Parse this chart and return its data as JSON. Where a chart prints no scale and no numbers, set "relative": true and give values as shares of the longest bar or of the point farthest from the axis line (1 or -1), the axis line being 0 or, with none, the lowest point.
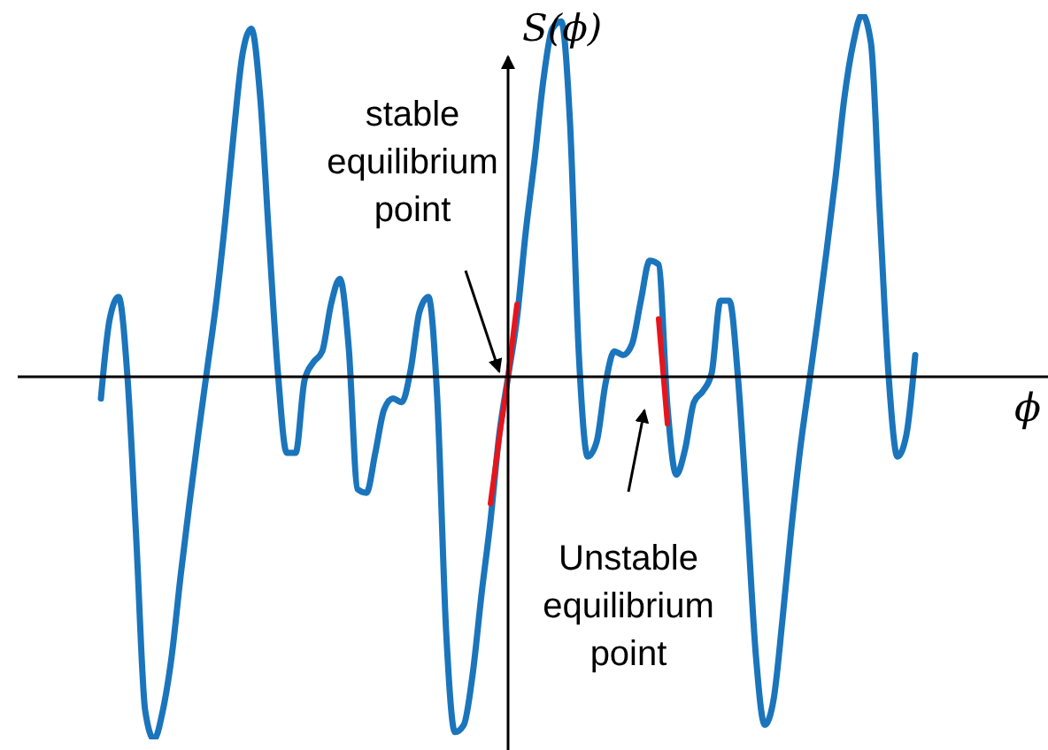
{
  "chart_data": {
    "type": "line",
    "relative": true,
    "xlabel": "ϕ",
    "ylabel": "S(ϕ)",
    "legend": false,
    "grid": false,
    "annotations": [
      "stable equilibrium point",
      "Unstable equilibrium point"
    ],
    "categories": [
      null,
      null,
      null,
      null,
      null,
      null,
      null,
      null,
      null,
      null,
      null,
      null,
      null,
      null,
      null,
      null,
      null,
      null,
      null,
      null,
      null,
      null,
      null,
      null,
      null,
      null,
      null,
      null,
      null,
      null,
      null,
      null,
      null,
      null,
      null,
      null,
      null,
      null,
      null,
      null,
      null,
      null,
      null,
      null,
      null,
      null,
      null,
      null,
      null,
      null,
      null,
      null,
      null,
      null,
      null,
      null,
      null,
      null,
      null,
      null,
      null,
      null,
      null,
      null,
      null,
      null,
      null,
      null,
      null,
      null,
      null,
      null,
      null,
      null,
      null,
      null,
      null,
      null,
      null,
      null,
      null,
      null,
      null,
      null,
      null,
      null,
      null,
      null,
      null,
      null,
      null,
      null,
      null
    ],
    "series": [
      {
        "color": "#1a75bc",
        "values": [
          -0.06,
          0.16,
          0.22,
          0,
          -0.45,
          -0.92,
          -1.0,
          -0.92,
          -0.77,
          -0.55,
          -0.35,
          -0.16,
          0.02,
          0.2,
          0.42,
          0.67,
          0.89,
          0.96,
          0.77,
          0.38,
          0.01,
          -0.21,
          -0.21,
          -0.01,
          0.04,
          0.07,
          0.2,
          0.27,
          0.08,
          -0.31,
          -0.32,
          -0.21,
          -0.09,
          -0.06,
          -0.07,
          0.02,
          0.18,
          0.22,
          -0.06,
          -0.7,
          -0.98,
          -0.96,
          -0.82,
          -0.6,
          -0.4,
          -0.16,
          0,
          0.16,
          0.4,
          0.6,
          0.82,
          0.96,
          0.98,
          0.7,
          0.06,
          -0.22,
          -0.18,
          -0.02,
          0.07,
          0.06,
          0.09,
          0.21,
          0.32,
          0.31,
          -0.08,
          -0.27,
          -0.2,
          -0.07,
          -0.04,
          0.01,
          0.21,
          0.21,
          -0.01,
          -0.38,
          -0.77,
          -0.96,
          -0.89,
          -0.67,
          -0.42,
          -0.2,
          -0.02,
          0.16,
          0.35,
          0.55,
          0.77,
          0.92,
          1.0,
          0.92,
          0.45,
          0,
          -0.22,
          -0.16,
          0.06
        ]
      },
      {
        "color": "#e8141c",
        "values": [
          null,
          null,
          null,
          null,
          null,
          null,
          null,
          null,
          null,
          null,
          null,
          null,
          null,
          null,
          null,
          null,
          null,
          null,
          null,
          null,
          null,
          null,
          null,
          null,
          null,
          null,
          null,
          null,
          null,
          null,
          null,
          null,
          null,
          null,
          null,
          null,
          null,
          null,
          null,
          null,
          null,
          null,
          null,
          null,
          -0.35,
          -0.17,
          0,
          0.2,
          null,
          null,
          null,
          null,
          null,
          null,
          null,
          null,
          null,
          null,
          null,
          null,
          null,
          null,
          null,
          0.16,
          -0.13,
          null,
          null,
          null,
          null,
          null,
          null,
          null,
          null,
          null,
          null,
          null,
          null,
          null,
          null,
          null,
          null,
          null,
          null,
          null,
          null,
          null,
          null,
          null,
          null,
          null,
          null,
          null,
          null
        ]
      }
    ]
  }
}
